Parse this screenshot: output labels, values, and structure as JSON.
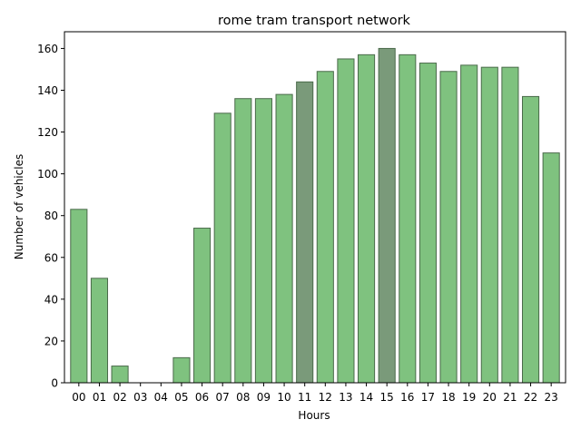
{
  "chart_data": {
    "type": "bar",
    "title": "rome tram transport network",
    "xlabel": "Hours",
    "ylabel": "Number of vehicles",
    "ylim": [
      0,
      168
    ],
    "yticks": [
      0,
      20,
      40,
      60,
      80,
      100,
      120,
      140,
      160
    ],
    "grid": false,
    "legend": "none",
    "categories": [
      "00",
      "01",
      "02",
      "03",
      "04",
      "05",
      "06",
      "07",
      "08",
      "09",
      "10",
      "11",
      "12",
      "13",
      "14",
      "15",
      "16",
      "17",
      "18",
      "19",
      "20",
      "21",
      "22",
      "23"
    ],
    "values": [
      83,
      50,
      8,
      0,
      0,
      12,
      74,
      129,
      136,
      136,
      138,
      144,
      149,
      155,
      157,
      160,
      157,
      153,
      149,
      152,
      151,
      151,
      137,
      110
    ],
    "highlighted_categories": [
      "11",
      "15"
    ],
    "colors": {
      "bar": "#7fc27f",
      "bar_highlight": "#7a9a7a",
      "bar_edge": "#4a6a4a",
      "axis": "#000000"
    }
  }
}
